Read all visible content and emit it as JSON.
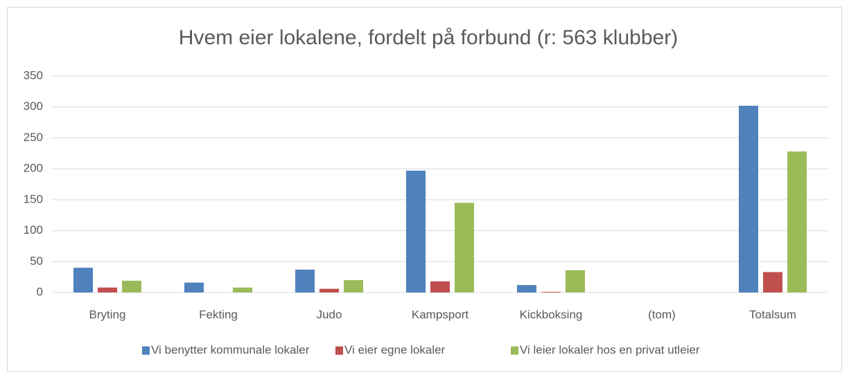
{
  "chart_data": {
    "type": "bar",
    "title": "Hvem eier lokalene, fordelt på forbund (r: 563 klubber)",
    "categories": [
      "Bryting",
      "Fekting",
      "Judo",
      "Kampsport",
      "Kickboksing",
      "(tom)",
      "Totalsum"
    ],
    "series": [
      {
        "name": "Vi benytter kommunale lokaler",
        "color": "#4f81bd",
        "values": [
          40,
          16,
          37,
          197,
          12,
          null,
          302
        ]
      },
      {
        "name": "Vi eier egne lokaler",
        "color": "#c0504d",
        "values": [
          8,
          0,
          6,
          18,
          1,
          null,
          33
        ]
      },
      {
        "name": "Vi leier lokaler hos en privat utleier",
        "color": "#9bbb59",
        "values": [
          19,
          8,
          20,
          145,
          36,
          null,
          228
        ]
      }
    ],
    "ylim": [
      0,
      350
    ],
    "yticks": [
      0,
      50,
      100,
      150,
      200,
      250,
      300,
      350
    ],
    "grid": true,
    "legend": "bottom"
  }
}
